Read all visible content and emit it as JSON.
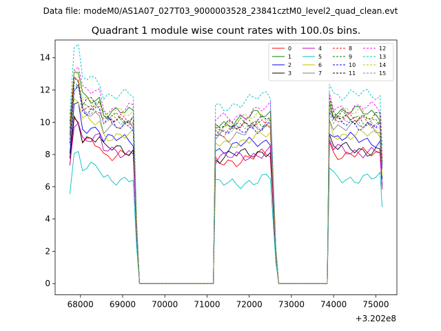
{
  "suptitle": "Data file: modeM0/AS1A07_027T03_9000003528_23841cztM0_level2_quad_clean.evt",
  "chart_data": {
    "type": "line",
    "title": "Quadrant 1 module wise count rates with 100.0s bins.",
    "xlabel": "",
    "ylabel": "",
    "x_offset_label": "+3.202e8",
    "xlim": [
      67400,
      75500
    ],
    "ylim": [
      -0.7,
      15.1
    ],
    "xticks": [
      68000,
      69000,
      70000,
      71000,
      72000,
      73000,
      74000,
      75000
    ],
    "xtick_labels": [
      "68000",
      "69000",
      "70000",
      "71000",
      "72000",
      "73000",
      "74000",
      "75000"
    ],
    "yticks": [
      0,
      2,
      4,
      6,
      8,
      10,
      12,
      14
    ],
    "ytick_labels": [
      "0",
      "2",
      "4",
      "6",
      "8",
      "10",
      "12",
      "14"
    ],
    "grid": false,
    "legend_position": "top-right",
    "segments": [
      {
        "x_start": 67750,
        "x_end": 69250
      },
      {
        "x_start": 71150,
        "x_end": 72550
      },
      {
        "x_start": 73850,
        "x_end": 75150
      }
    ],
    "series": [
      {
        "name": "0",
        "color": "#ff0000",
        "dashed": false,
        "base": 8.1
      },
      {
        "name": "1",
        "color": "#008000",
        "dashed": false,
        "base": 10.7
      },
      {
        "name": "2",
        "color": "#0000ff",
        "dashed": false,
        "base": 9.0
      },
      {
        "name": "3",
        "color": "#000000",
        "dashed": false,
        "base": 8.4
      },
      {
        "name": "4",
        "color": "#bf00bf",
        "dashed": false,
        "base": 8.3
      },
      {
        "name": "5",
        "color": "#00bfbf",
        "dashed": false,
        "base": 6.6
      },
      {
        "name": "6",
        "color": "#bfbf00",
        "dashed": false,
        "base": 9.3
      },
      {
        "name": "7",
        "color": "#808080",
        "dashed": false,
        "base": 9.8
      },
      {
        "name": "8",
        "color": "#ff0000",
        "dashed": true,
        "base": 10.2
      },
      {
        "name": "9",
        "color": "#008000",
        "dashed": true,
        "base": 10.3
      },
      {
        "name": "10",
        "color": "#0000ff",
        "dashed": true,
        "base": 10.0
      },
      {
        "name": "11",
        "color": "#000000",
        "dashed": true,
        "base": 10.4
      },
      {
        "name": "12",
        "color": "#ff00ff",
        "dashed": true,
        "base": 11.0
      },
      {
        "name": "13",
        "color": "#00bfbf",
        "dashed": true,
        "base": 11.8
      },
      {
        "name": "14",
        "color": "#bfbf00",
        "dashed": true,
        "base": 10.6
      },
      {
        "name": "15",
        "color": "#808080",
        "dashed": true,
        "base": 10.1
      }
    ]
  }
}
